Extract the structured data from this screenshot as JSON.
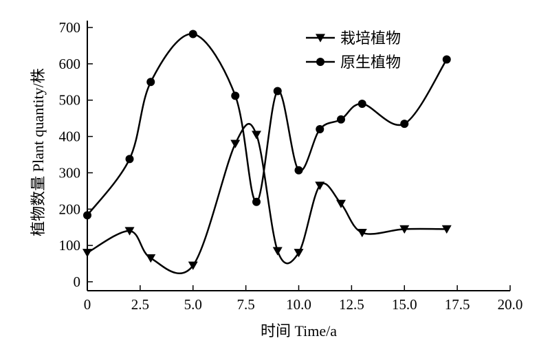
{
  "chart_data": {
    "type": "line",
    "title": "",
    "xlabel": "时间 Time/a",
    "ylabel": "植物数量 Plant quantity/株",
    "xlim": [
      0,
      20
    ],
    "ylim": [
      0,
      700
    ],
    "xticks": [
      0,
      2.5,
      5.0,
      7.5,
      10.0,
      12.5,
      15.0,
      17.5,
      20.0
    ],
    "xtick_labels": [
      "0",
      "2.5",
      "5.0",
      "7.5",
      "10.0",
      "12.5",
      "15.0",
      "17.5",
      "20.0"
    ],
    "yticks": [
      0,
      100,
      200,
      300,
      400,
      500,
      600,
      700
    ],
    "ytick_labels": [
      "0",
      "100",
      "200",
      "300",
      "400",
      "500",
      "600",
      "700"
    ],
    "grid": false,
    "legend_position": "top-right",
    "series": [
      {
        "name": "栽培植物",
        "marker": "triangle-down",
        "x": [
          0,
          2,
          3,
          5,
          7,
          8,
          9,
          10,
          11,
          12,
          13,
          15,
          17
        ],
        "y": [
          80,
          140,
          65,
          45,
          380,
          405,
          85,
          80,
          265,
          215,
          135,
          145,
          145
        ]
      },
      {
        "name": "原生植物",
        "marker": "circle",
        "x": [
          0,
          2,
          3,
          5,
          7,
          8,
          9,
          10,
          11,
          12,
          13,
          15,
          17
        ],
        "y": [
          183,
          338,
          550,
          682,
          512,
          220,
          525,
          307,
          420,
          447,
          490,
          435,
          612
        ]
      }
    ]
  }
}
